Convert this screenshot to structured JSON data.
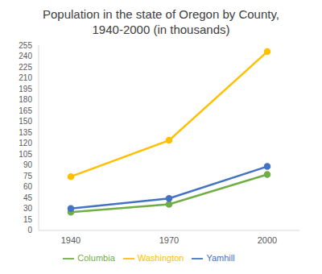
{
  "chart_data": {
    "type": "line",
    "title": "Population in the state of Oregon by County, 1940-2000 (in thousands)",
    "categories": [
      "1940",
      "1970",
      "2000"
    ],
    "series": [
      {
        "name": "Columbia",
        "color": "#70ad47",
        "values": [
          25,
          36,
          77
        ],
        "marker": "circle"
      },
      {
        "name": "Yamhill",
        "color": "#4472c4",
        "values": [
          30,
          44,
          88
        ],
        "marker": "circle"
      },
      {
        "name": "Washington",
        "color": "#ffc000",
        "values": [
          74,
          124,
          246
        ],
        "marker": "circle"
      }
    ],
    "ylim": [
      0,
      255
    ],
    "yticks": [
      0,
      15,
      30,
      45,
      60,
      75,
      90,
      105,
      120,
      135,
      150,
      165,
      180,
      195,
      210,
      225,
      240,
      255
    ],
    "grid": false,
    "legend": "bottom"
  }
}
